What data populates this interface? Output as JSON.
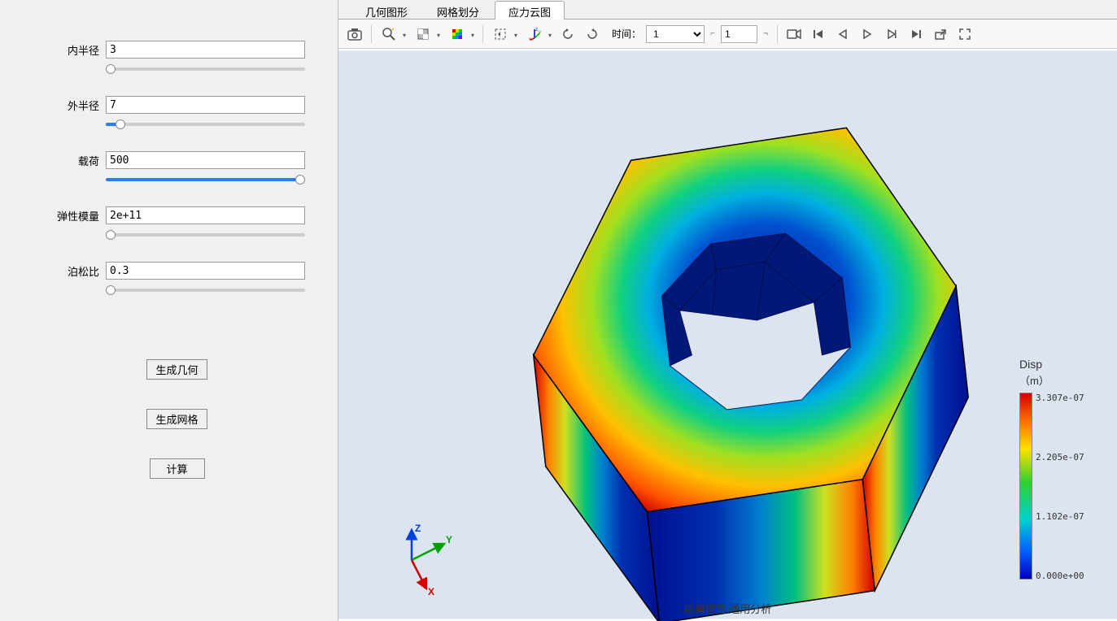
{
  "sidebar": {
    "params": [
      {
        "label": "内半径",
        "value": "3",
        "slider_pct": 0,
        "track": "linear-gradient(to right,#ccc 0%,#ccc 100%)"
      },
      {
        "label": "外半径",
        "value": "7",
        "slider_pct": 5,
        "track": "linear-gradient(to right,#2b7de9 0%,#2b7de9 5%,#ccc 5%,#ccc 100%)"
      },
      {
        "label": "载荷",
        "value": "500",
        "slider_pct": 100,
        "track": "linear-gradient(to right,#2b7de9 0%,#2b7de9 100%)"
      },
      {
        "label": "弹性模量",
        "value": "2e+11",
        "slider_pct": 0,
        "track": "linear-gradient(to right,#ccc 0%,#ccc 100%)"
      },
      {
        "label": "泊松比",
        "value": "0.3",
        "slider_pct": 0,
        "track": "linear-gradient(to right,#ccc 0%,#ccc 100%)"
      }
    ],
    "buttons": {
      "gen_geom": "生成几何",
      "gen_mesh": "生成网格",
      "compute": "计算"
    }
  },
  "tabs": [
    {
      "label": "几何图形",
      "active": false
    },
    {
      "label": "网格划分",
      "active": false
    },
    {
      "label": "应力云图",
      "active": true
    }
  ],
  "toolbar": {
    "time_label": "时间：",
    "time_select_value": "1",
    "time_input_value": "1"
  },
  "viewport": {
    "bg_color": "#dce4ef",
    "footer": "结果模型:通用分析",
    "axis": {
      "x_label": "X",
      "y_label": "Y",
      "z_label": "Z",
      "x_color": "#d00000",
      "y_color": "#00a000",
      "z_color": "#0040e0"
    }
  },
  "legend": {
    "title": "Disp",
    "unit": "（m）",
    "ticks": [
      "3.307e-07",
      "2.205e-07",
      "1.102e-07",
      "0.000e+00"
    ],
    "gradient_stops": [
      {
        "pct": 0,
        "color": "#d00000"
      },
      {
        "pct": 15,
        "color": "#ff7000"
      },
      {
        "pct": 30,
        "color": "#ffe000"
      },
      {
        "pct": 48,
        "color": "#30d030"
      },
      {
        "pct": 68,
        "color": "#00d0d0"
      },
      {
        "pct": 85,
        "color": "#0060ff"
      },
      {
        "pct": 100,
        "color": "#0000c0"
      }
    ]
  }
}
